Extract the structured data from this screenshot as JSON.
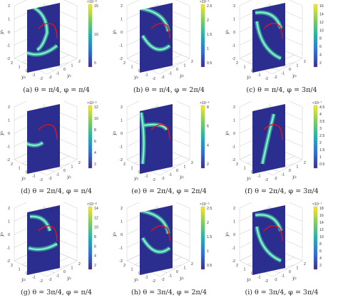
{
  "panels": [
    {
      "caption": "(a) θ = π/4, φ = π/4",
      "exp": "×10⁻⁸",
      "cbticks": [
        "15",
        "10",
        "5"
      ],
      "variant": "a",
      "ylabels": [
        "y₂",
        "y₁",
        "y₃"
      ]
    },
    {
      "caption": "(b) θ = π/4, φ = 2π/4",
      "exp": "×10⁻⁵",
      "cbticks": [
        "2.5",
        "2",
        "1.5",
        "1",
        "0.5"
      ],
      "variant": "b",
      "ylabels": [
        "y₂",
        "y₁",
        "y₃"
      ]
    },
    {
      "caption": "(c) θ = π/4, φ = 3π/4",
      "exp": "",
      "cbticks": [
        "16",
        "14",
        "12",
        "10",
        "8",
        "6",
        "4",
        "2"
      ],
      "variant": "c",
      "ylabels": [
        "y₂",
        "y₁",
        "y₃"
      ]
    },
    {
      "caption": "(d) θ = 2π/4, φ = π/4",
      "exp": "×10⁻⁶",
      "cbticks": [
        "12",
        "10",
        "8",
        "6",
        "4",
        "2"
      ],
      "variant": "d",
      "ylabels": [
        "y₂",
        "y₁",
        "y₃"
      ]
    },
    {
      "caption": "(e) θ = 2π/4, φ = 2π/4",
      "exp": "×10⁻⁶",
      "cbticks": [
        "8",
        "6",
        "4",
        "2"
      ],
      "variant": "e",
      "ylabels": [
        "y₂",
        "y₁",
        "y₃"
      ]
    },
    {
      "caption": "(f) θ = 2π/4, φ = 3π/4",
      "exp": "×10⁻⁷",
      "cbticks": [
        "4.5",
        "4",
        "3.5",
        "3",
        "2.5",
        "2",
        "1.5",
        "1",
        "0.5"
      ],
      "variant": "f",
      "ylabels": [
        "y₂",
        "y₁",
        "y₃"
      ]
    },
    {
      "caption": "(g) θ = 3π/4, φ = π/4",
      "exp": "×10⁻⁸",
      "cbticks": [
        "14",
        "12",
        "10",
        "8",
        "6",
        "4",
        "2"
      ],
      "variant": "g",
      "ylabels": [
        "y₂",
        "y₁",
        "y₃"
      ]
    },
    {
      "caption": "(h) θ = 3π/4, φ = 2π/4",
      "exp": "×10⁻⁵",
      "cbticks": [
        "2.5",
        "2",
        "1.5",
        "1",
        "0.5"
      ],
      "variant": "h",
      "ylabels": [
        "y₂",
        "y₁",
        "y₃"
      ]
    },
    {
      "caption": "(i) θ = 3π/4, φ = 3π/4",
      "exp": "×10⁻⁷",
      "cbticks": [
        "18",
        "16",
        "14",
        "12",
        "10",
        "8",
        "6",
        "4",
        "2"
      ],
      "variant": "i",
      "ylabels": [
        "y₂",
        "y₁",
        "y₃"
      ]
    }
  ],
  "axis_ticks": {
    "y3": [
      "2",
      "1",
      "0",
      "-1",
      "-2"
    ],
    "y2": [
      "2",
      "1",
      "0",
      "-1",
      "-2"
    ],
    "y1": [
      "-2",
      "-1",
      "0",
      "1",
      "2"
    ]
  },
  "colors": {
    "background_plane": "#2b2d8f",
    "ring": "#7ff0c8",
    "red_arc": "#e0141a"
  }
}
